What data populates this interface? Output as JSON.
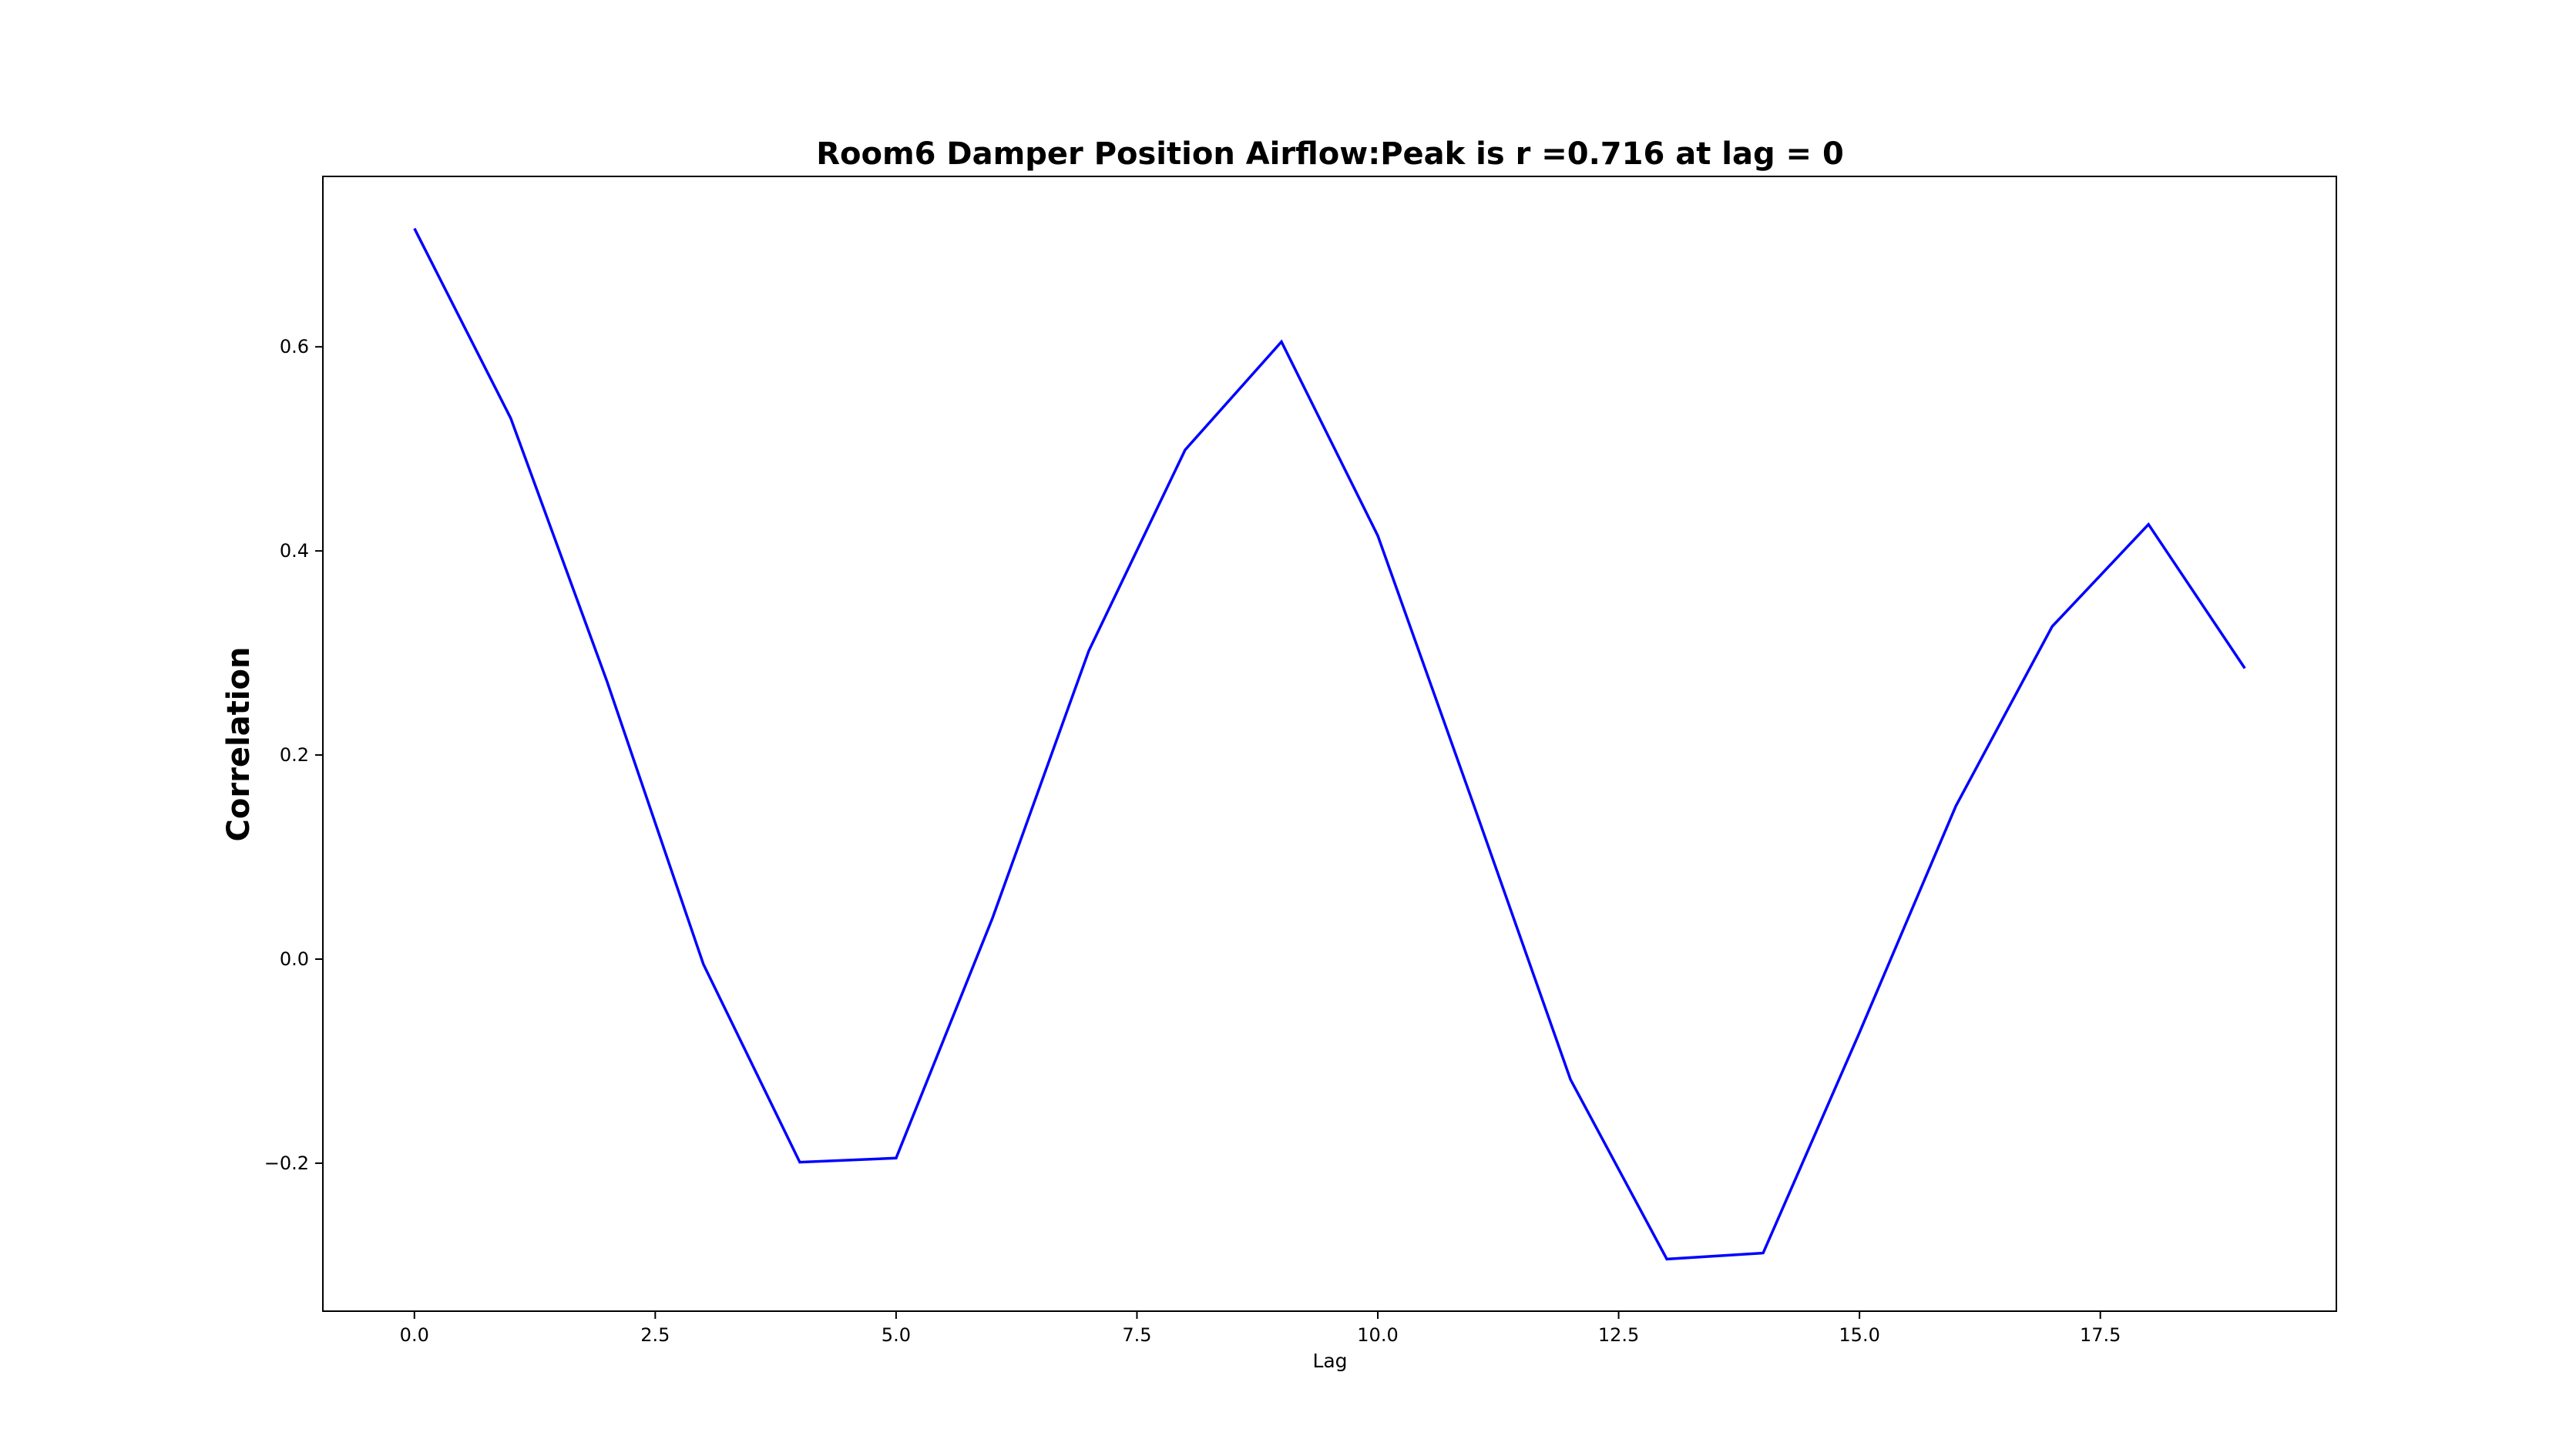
{
  "chart_data": {
    "type": "line",
    "title": "Room6 Damper Position Airflow:Peak is r =0.716 at lag = 0",
    "xlabel": "Lag",
    "ylabel": "Correlation",
    "x": [
      0,
      1,
      2,
      3,
      4,
      5,
      6,
      7,
      8,
      9,
      10,
      11,
      12,
      13,
      14,
      15,
      16,
      17,
      18,
      19
    ],
    "series": [
      {
        "values": [
          0.716,
          0.53,
          0.272,
          -0.005,
          -0.199,
          -0.195,
          0.04,
          0.302,
          0.499,
          0.605,
          0.415,
          0.15,
          -0.118,
          -0.294,
          -0.288,
          -0.072,
          0.15,
          0.326,
          0.426,
          0.285
        ]
      }
    ],
    "xlim": [
      -0.95,
      19.95
    ],
    "ylim": [
      -0.345,
      0.767
    ],
    "xticks": [
      0.0,
      2.5,
      5.0,
      7.5,
      10.0,
      12.5,
      15.0,
      17.5
    ],
    "xtick_labels": [
      "0.0",
      "2.5",
      "5.0",
      "7.5",
      "10.0",
      "12.5",
      "15.0",
      "17.5"
    ],
    "yticks": [
      -0.2,
      0.0,
      0.2,
      0.4,
      0.6
    ],
    "ytick_labels": [
      "−0.2",
      "0.0",
      "0.2",
      "0.4",
      "0.6"
    ],
    "line_color": "#0000ff",
    "grid": false,
    "legend": "none"
  }
}
